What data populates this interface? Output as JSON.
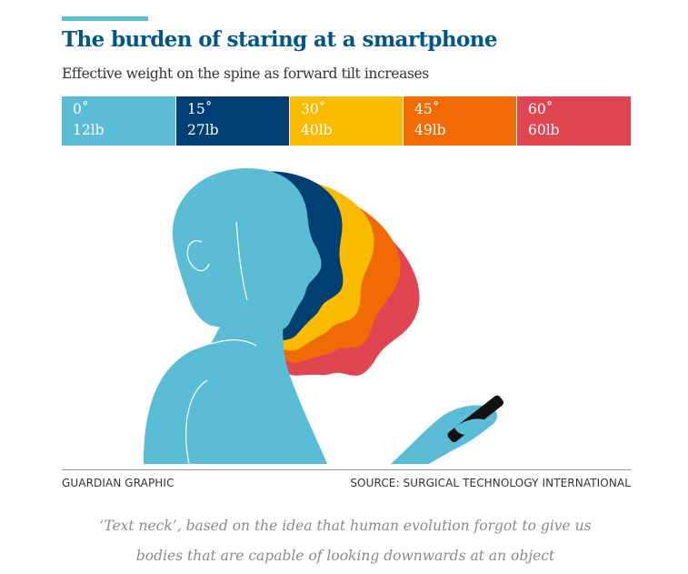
{
  "header": {
    "title": "The burden of staring at a smartphone",
    "subtitle": "Effective weight on the spine as forward tilt increases"
  },
  "bands": [
    {
      "angle": "0˚",
      "weight": "12lb",
      "color": "#5bbcd6"
    },
    {
      "angle": "15˚",
      "weight": "27lb",
      "color": "#003f72"
    },
    {
      "angle": "30˚",
      "weight": "40lb",
      "color": "#fbbb00"
    },
    {
      "angle": "45˚",
      "weight": "49lb",
      "color": "#f06b05"
    },
    {
      "angle": "60˚",
      "weight": "60lb",
      "color": "#e04552"
    }
  ],
  "footer": {
    "credit": "GUARDIAN GRAPHIC",
    "source": "SOURCE: SURGICAL TECHNOLOGY INTERNATIONAL"
  },
  "caption": {
    "line1": "‘Text neck’, based on the idea that human evolution forgot to give us",
    "line2": "bodies that are capable of looking downwards at an object"
  }
}
